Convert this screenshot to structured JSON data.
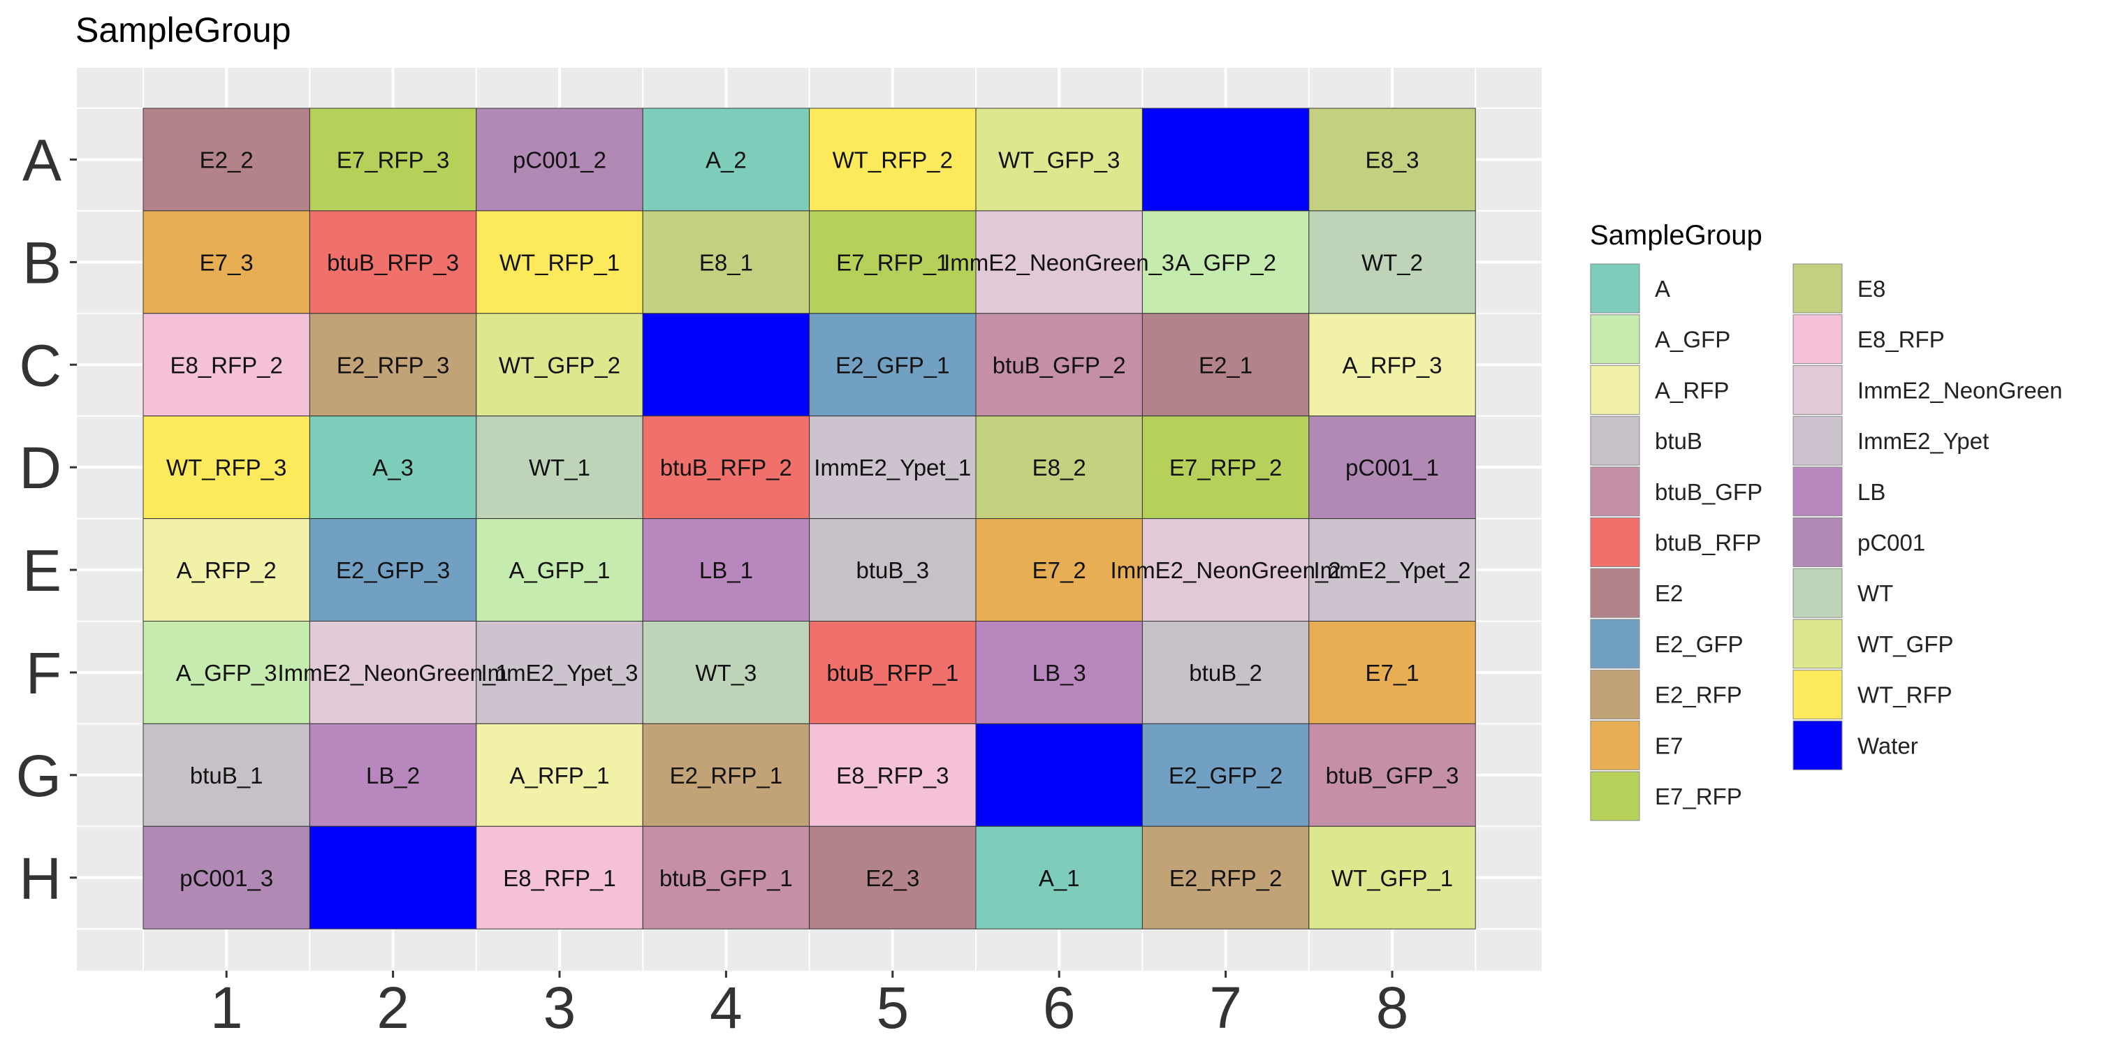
{
  "chart_data": {
    "type": "heatmap",
    "title": "SampleGroup",
    "xlabel": "",
    "ylabel": "",
    "columns": [
      "1",
      "2",
      "3",
      "4",
      "5",
      "6",
      "7",
      "8"
    ],
    "rows": [
      "A",
      "B",
      "C",
      "D",
      "E",
      "F",
      "G",
      "H"
    ],
    "grid": true,
    "legend": {
      "title": "SampleGroup",
      "placement": "right",
      "entries": [
        {
          "name": "A",
          "color": "#7ECDBB"
        },
        {
          "name": "A_GFP",
          "color": "#C6EBAE"
        },
        {
          "name": "A_RFP",
          "color": "#F1F2A8"
        },
        {
          "name": "btuB",
          "color": "#C6C1C7"
        },
        {
          "name": "btuB_GFP",
          "color": "#C590A7"
        },
        {
          "name": "btuB_RFP",
          "color": "#F0716C"
        },
        {
          "name": "E2",
          "color": "#B3838A"
        },
        {
          "name": "E2_GFP",
          "color": "#72A0C2"
        },
        {
          "name": "E2_RFP",
          "color": "#C2A277"
        },
        {
          "name": "E7",
          "color": "#E8AE54"
        },
        {
          "name": "E7_RFP",
          "color": "#B5D15A"
        },
        {
          "name": "E8",
          "color": "#C2D080"
        },
        {
          "name": "E8_RFP",
          "color": "#F4C1D8"
        },
        {
          "name": "ImmE2_NeonGreen",
          "color": "#E1C9D7"
        },
        {
          "name": "ImmE2_Ypet",
          "color": "#CCC3CE"
        },
        {
          "name": "LB",
          "color": "#B887BD"
        },
        {
          "name": "pC001",
          "color": "#B089B4"
        },
        {
          "name": "WT",
          "color": "#BFD3B9"
        },
        {
          "name": "WT_GFP",
          "color": "#DCE78E"
        },
        {
          "name": "WT_RFP",
          "color": "#FDEA5C"
        },
        {
          "name": "Water",
          "color": "#0000FF"
        }
      ]
    },
    "cells": [
      [
        "E2_2",
        "E7_RFP_3",
        "pC001_2",
        "A_2",
        "WT_RFP_2",
        "WT_GFP_3",
        "",
        "E8_3"
      ],
      [
        "E7_3",
        "btuB_RFP_3",
        "WT_RFP_1",
        "E8_1",
        "E7_RFP_1",
        "ImmE2_NeonGreen_3",
        "A_GFP_2",
        "WT_2"
      ],
      [
        "E8_RFP_2",
        "E2_RFP_3",
        "WT_GFP_2",
        "",
        "E2_GFP_1",
        "btuB_GFP_2",
        "E2_1",
        "A_RFP_3"
      ],
      [
        "WT_RFP_3",
        "A_3",
        "WT_1",
        "btuB_RFP_2",
        "ImmE2_Ypet_1",
        "E8_2",
        "E7_RFP_2",
        "pC001_1"
      ],
      [
        "A_RFP_2",
        "E2_GFP_3",
        "A_GFP_1",
        "LB_1",
        "btuB_3",
        "E7_2",
        "ImmE2_NeonGreen_2",
        "ImmE2_Ypet_2"
      ],
      [
        "A_GFP_3",
        "ImmE2_NeonGreen_1",
        "ImmE2_Ypet_3",
        "WT_3",
        "btuB_RFP_1",
        "LB_3",
        "btuB_2",
        "E7_1"
      ],
      [
        "btuB_1",
        "LB_2",
        "A_RFP_1",
        "E2_RFP_1",
        "E8_RFP_3",
        "",
        "E2_GFP_2",
        "btuB_GFP_3"
      ],
      [
        "pC001_3",
        "",
        "E8_RFP_1",
        "btuB_GFP_1",
        "E2_3",
        "A_1",
        "E2_RFP_2",
        "WT_GFP_1"
      ]
    ],
    "groups": [
      [
        "E2",
        "E7_RFP",
        "pC001",
        "A",
        "WT_RFP",
        "WT_GFP",
        "Water",
        "E8"
      ],
      [
        "E7",
        "btuB_RFP",
        "WT_RFP",
        "E8",
        "E7_RFP",
        "ImmE2_NeonGreen",
        "A_GFP",
        "WT"
      ],
      [
        "E8_RFP",
        "E2_RFP",
        "WT_GFP",
        "Water",
        "E2_GFP",
        "btuB_GFP",
        "E2",
        "A_RFP"
      ],
      [
        "WT_RFP",
        "A",
        "WT",
        "btuB_RFP",
        "ImmE2_Ypet",
        "E8",
        "E7_RFP",
        "pC001"
      ],
      [
        "A_RFP",
        "E2_GFP",
        "A_GFP",
        "LB",
        "btuB",
        "E7",
        "ImmE2_NeonGreen",
        "ImmE2_Ypet"
      ],
      [
        "A_GFP",
        "ImmE2_NeonGreen",
        "ImmE2_Ypet",
        "WT",
        "btuB_RFP",
        "LB",
        "btuB",
        "E7"
      ],
      [
        "btuB",
        "LB",
        "A_RFP",
        "E2_RFP",
        "E8_RFP",
        "Water",
        "E2_GFP",
        "btuB_GFP"
      ],
      [
        "pC001",
        "Water",
        "E8_RFP",
        "btuB_GFP",
        "E2",
        "A",
        "E2_RFP",
        "WT_GFP"
      ]
    ]
  }
}
